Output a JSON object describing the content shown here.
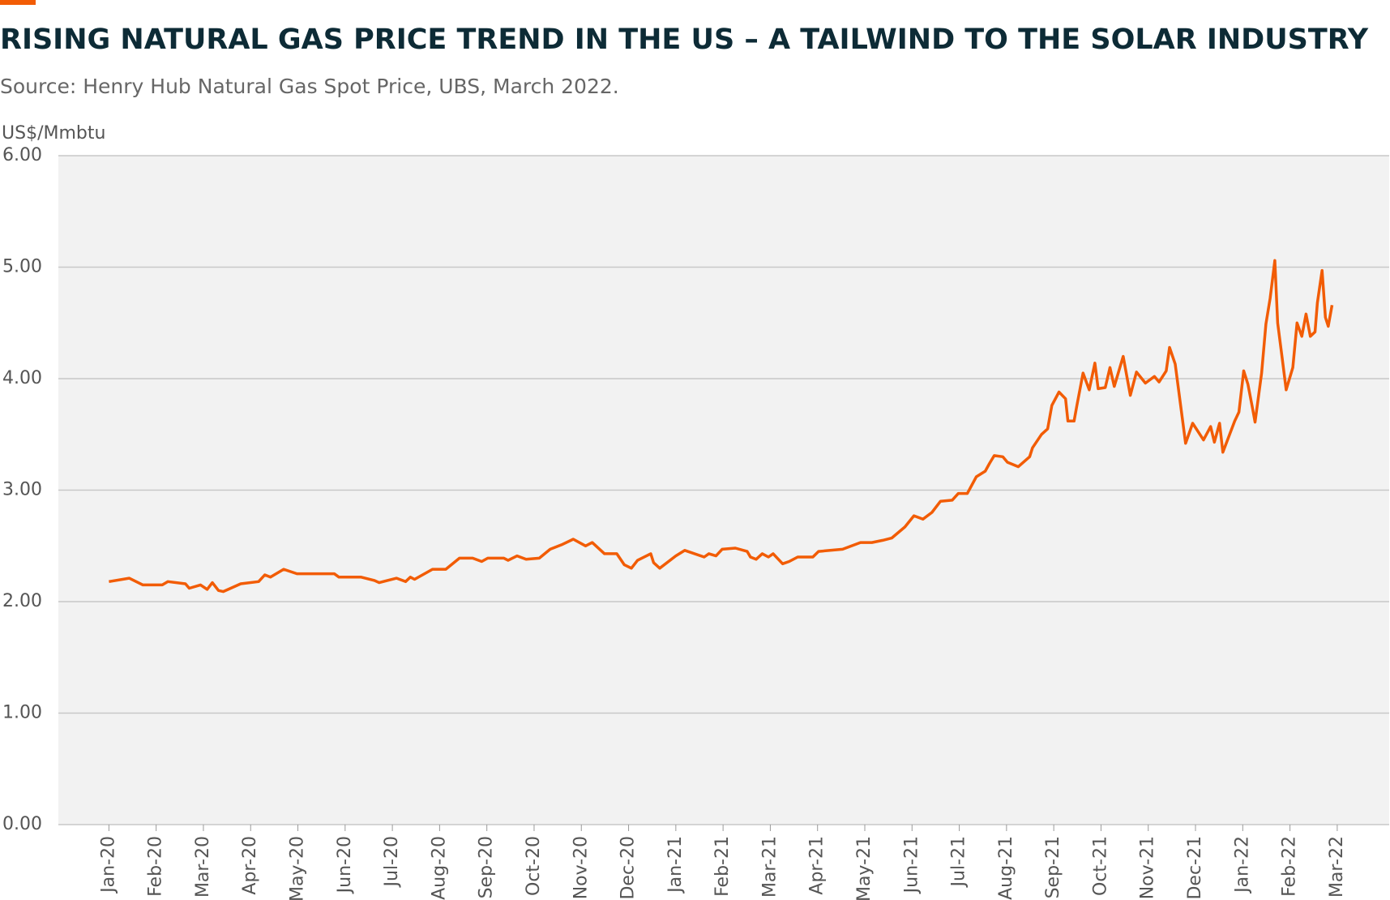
{
  "chart_data": {
    "type": "line",
    "title": "RISING NATURAL GAS PRICE TREND IN THE US – A TAILWIND TO THE SOLAR INDUSTRY",
    "subtitle": "Source: Henry Hub Natural Gas Spot Price, UBS, March 2022.",
    "y_label": "US$/Mmbtu",
    "grid": true,
    "xlim": [
      -1.07,
      27.1
    ],
    "ylim": [
      0,
      6
    ],
    "yticks": [
      {
        "value": 0,
        "label": "0.00"
      },
      {
        "value": 1,
        "label": "1.00"
      },
      {
        "value": 2,
        "label": "2.00"
      },
      {
        "value": 3,
        "label": "3.00"
      },
      {
        "value": 4,
        "label": "4.00"
      },
      {
        "value": 5,
        "label": "5.00"
      },
      {
        "value": 6,
        "label": "6.00"
      }
    ],
    "xticks": [
      {
        "value": 0,
        "label": "Jan-20"
      },
      {
        "value": 1,
        "label": "Feb-20"
      },
      {
        "value": 2,
        "label": "Mar-20"
      },
      {
        "value": 3,
        "label": "Apr-20"
      },
      {
        "value": 4,
        "label": "May-20"
      },
      {
        "value": 5,
        "label": "Jun-20"
      },
      {
        "value": 6,
        "label": "Jul-20"
      },
      {
        "value": 7,
        "label": "Aug-20"
      },
      {
        "value": 8,
        "label": "Sep-20"
      },
      {
        "value": 9,
        "label": "Oct-20"
      },
      {
        "value": 10,
        "label": "Nov-20"
      },
      {
        "value": 11,
        "label": "Dec-20"
      },
      {
        "value": 12,
        "label": "Jan-21"
      },
      {
        "value": 13,
        "label": "Feb-21"
      },
      {
        "value": 14,
        "label": "Mar-21"
      },
      {
        "value": 15,
        "label": "Apr-21"
      },
      {
        "value": 16,
        "label": "May-21"
      },
      {
        "value": 17,
        "label": "Jun-21"
      },
      {
        "value": 18,
        "label": "Jul-21"
      },
      {
        "value": 19,
        "label": "Aug-21"
      },
      {
        "value": 20,
        "label": "Sep-21"
      },
      {
        "value": 21,
        "label": "Oct-21"
      },
      {
        "value": 22,
        "label": "Nov-21"
      },
      {
        "value": 23,
        "label": "Dec-21"
      },
      {
        "value": 24,
        "label": "Jan-22"
      },
      {
        "value": 25,
        "label": "Feb-22"
      },
      {
        "value": 26,
        "label": "Mar-22"
      }
    ],
    "series": [
      {
        "name": "Henry Hub Natural Gas Spot Price",
        "color": "#f25c05",
        "x": [
          0,
          0.43,
          0.72,
          1.13,
          1.25,
          1.62,
          1.7,
          1.94,
          2.08,
          2.19,
          2.32,
          2.42,
          2.79,
          3.17,
          3.3,
          3.42,
          3.7,
          3.98,
          4.77,
          4.87,
          5.34,
          5.62,
          5.72,
          6.09,
          6.28,
          6.38,
          6.47,
          6.85,
          7.13,
          7.42,
          7.7,
          7.89,
          8.02,
          8.36,
          8.45,
          8.64,
          8.83,
          9.11,
          9.34,
          9.58,
          9.83,
          10.09,
          10.23,
          10.49,
          10.75,
          10.91,
          11.06,
          11.19,
          11.47,
          11.53,
          11.66,
          12.0,
          12.19,
          12.6,
          12.7,
          12.85,
          12.98,
          13.26,
          13.51,
          13.58,
          13.7,
          13.83,
          13.96,
          14.06,
          14.26,
          14.4,
          14.58,
          14.9,
          15.02,
          15.53,
          15.91,
          16.15,
          16.38,
          16.57,
          16.85,
          17.04,
          17.23,
          17.42,
          17.6,
          17.85,
          17.98,
          18.17,
          18.36,
          18.55,
          18.64,
          18.74,
          18.92,
          19.02,
          19.25,
          19.49,
          19.55,
          19.74,
          19.87,
          19.96,
          20.11,
          20.25,
          20.3,
          20.43,
          20.49,
          20.62,
          20.75,
          20.87,
          20.94,
          21.09,
          21.19,
          21.28,
          21.47,
          21.62,
          21.75,
          21.94,
          22.13,
          22.23,
          22.38,
          22.45,
          22.57,
          22.79,
          22.94,
          23.17,
          23.32,
          23.4,
          23.51,
          23.58,
          23.83,
          23.92,
          24.02,
          24.11,
          24.21,
          24.26,
          24.4,
          24.49,
          24.58,
          24.68,
          24.74,
          24.83,
          24.92,
          25.06,
          25.15,
          25.25,
          25.34,
          25.43,
          25.53,
          25.58,
          25.68,
          25.75,
          25.81,
          25.89
        ],
        "values": [
          2.18,
          2.21,
          2.15,
          2.15,
          2.18,
          2.16,
          2.12,
          2.15,
          2.11,
          2.17,
          2.1,
          2.09,
          2.16,
          2.18,
          2.24,
          2.22,
          2.29,
          2.25,
          2.25,
          2.22,
          2.22,
          2.19,
          2.17,
          2.21,
          2.18,
          2.22,
          2.2,
          2.29,
          2.29,
          2.39,
          2.39,
          2.36,
          2.39,
          2.39,
          2.37,
          2.41,
          2.38,
          2.39,
          2.47,
          2.51,
          2.56,
          2.5,
          2.53,
          2.43,
          2.43,
          2.33,
          2.3,
          2.37,
          2.43,
          2.35,
          2.3,
          2.41,
          2.46,
          2.4,
          2.43,
          2.41,
          2.47,
          2.48,
          2.45,
          2.4,
          2.38,
          2.43,
          2.4,
          2.43,
          2.34,
          2.36,
          2.4,
          2.4,
          2.45,
          2.47,
          2.53,
          2.53,
          2.55,
          2.57,
          2.67,
          2.77,
          2.74,
          2.8,
          2.9,
          2.91,
          2.97,
          2.97,
          3.12,
          3.17,
          3.24,
          3.31,
          3.3,
          3.25,
          3.21,
          3.3,
          3.38,
          3.5,
          3.55,
          3.76,
          3.88,
          3.82,
          3.62,
          3.62,
          3.76,
          4.05,
          3.9,
          4.14,
          3.91,
          3.92,
          4.1,
          3.93,
          4.2,
          3.85,
          4.06,
          3.96,
          4.02,
          3.97,
          4.07,
          4.28,
          4.13,
          3.42,
          3.6,
          3.45,
          3.57,
          3.43,
          3.6,
          3.34,
          3.62,
          3.7,
          4.07,
          3.95,
          3.73,
          3.61,
          4.05,
          4.49,
          4.72,
          5.06,
          4.5,
          4.2,
          3.9,
          4.1,
          4.5,
          4.38,
          4.58,
          4.38,
          4.42,
          4.68,
          4.97,
          4.55,
          4.47,
          4.66
        ]
      }
    ]
  }
}
